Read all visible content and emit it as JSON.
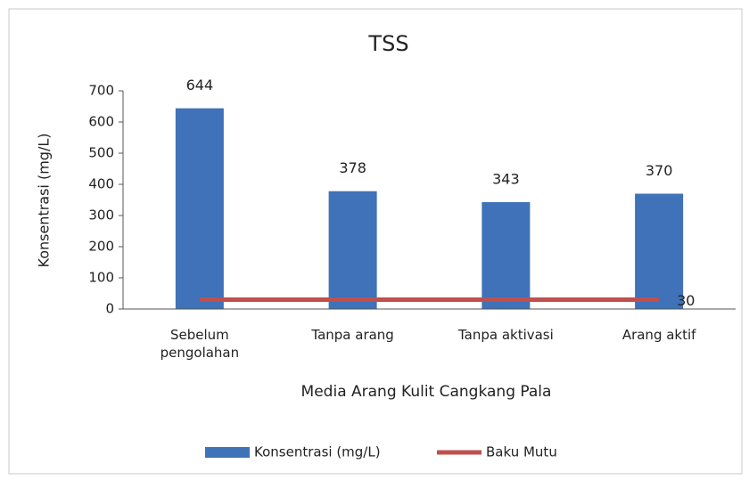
{
  "chart_data": {
    "type": "bar",
    "title": "TSS",
    "x_label": "Media Arang Kulit Cangkang Pala",
    "y_label": "Konsentrasi (mg/L)",
    "categories": [
      "Sebelum pengolahan",
      "Tanpa arang",
      "Tanpa aktivasi",
      "Arang aktif"
    ],
    "series": [
      {
        "name": "Konsentrasi (mg/L)",
        "color": "#3f72b8",
        "values": [
          644,
          378,
          343,
          370
        ]
      },
      {
        "name": "Baku Mutu",
        "color": "#c0504d",
        "type": "line",
        "values": [
          30,
          30,
          30,
          30
        ],
        "label_last_only": true
      }
    ],
    "ylim": [
      0,
      700
    ],
    "yticks": [
      0,
      100,
      200,
      300,
      400,
      500,
      600,
      700
    ],
    "grid": false,
    "legend": "bottom"
  }
}
